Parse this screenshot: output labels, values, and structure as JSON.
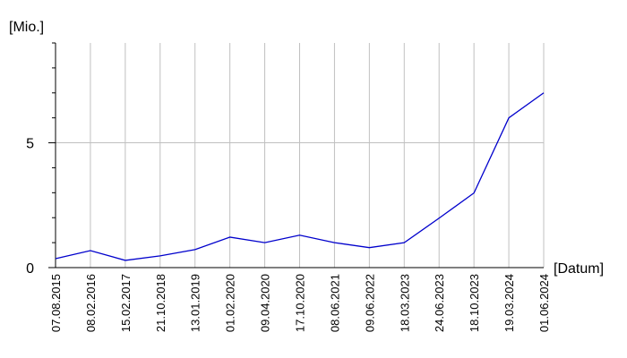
{
  "chart_data": {
    "type": "line",
    "y_label": "[Mio.]",
    "x_label": "[Datum]",
    "categories": [
      "07.08.2015",
      "08.02.2016",
      "15.02.2017",
      "21.10.2018",
      "13.01.2019",
      "01.02.2020",
      "09.04.2020",
      "17.10.2020",
      "08.06.2021",
      "09.06.2022",
      "18.03.2023",
      "24.06.2023",
      "18.10.2023",
      "19.03.2024",
      "01.06.2024"
    ],
    "series": [
      {
        "color": "#0000cc",
        "values": [
          0.36,
          0.68,
          0.29,
          0.47,
          0.72,
          1.22,
          1.0,
          1.3,
          1.0,
          0.8,
          1.0,
          1.98,
          2.99,
          6.0,
          7.0
        ]
      }
    ],
    "ylim": [
      0,
      9
    ],
    "yticks": [
      0,
      5
    ],
    "minor_yticks": [
      1,
      2,
      3,
      4,
      6,
      7,
      8,
      9
    ],
    "grid": true
  }
}
